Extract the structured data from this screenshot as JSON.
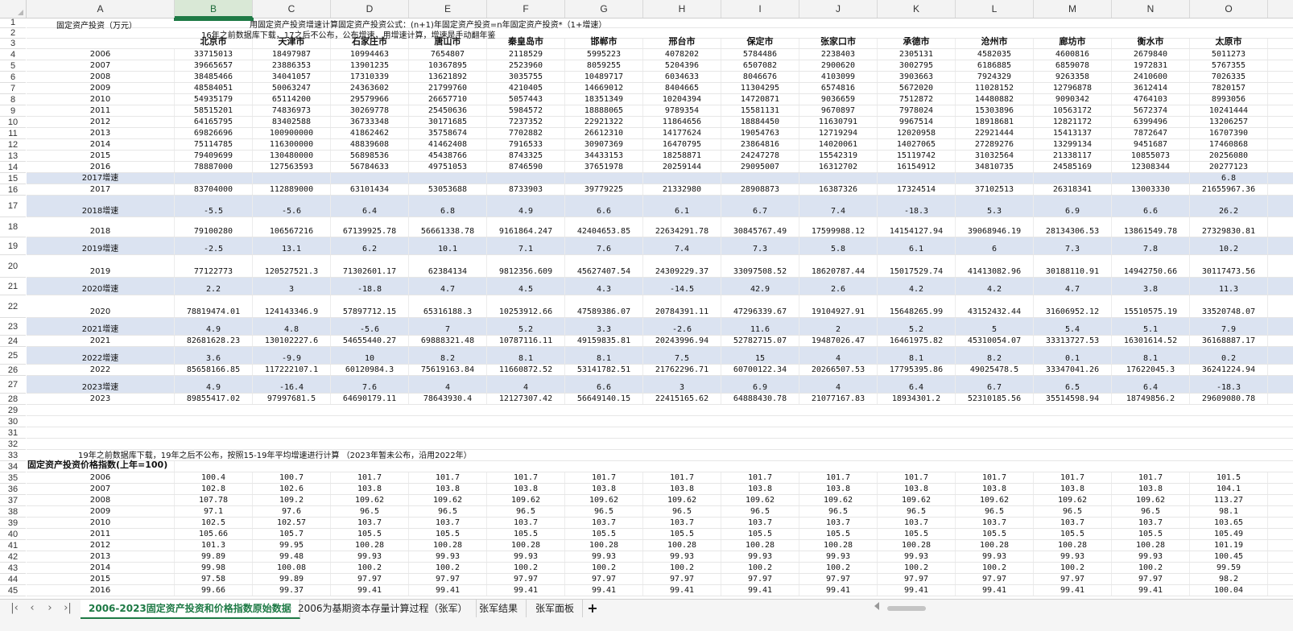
{
  "columns": [
    "A",
    "B",
    "C",
    "D",
    "E",
    "F",
    "G",
    "H",
    "I",
    "J",
    "K",
    "L",
    "M",
    "N",
    "O"
  ],
  "selected_column": "B",
  "row_numbers": [
    "1",
    "2",
    "3",
    "4",
    "5",
    "6",
    "7",
    "8",
    "9",
    "10",
    "11",
    "12",
    "13",
    "14",
    "15",
    "16",
    "17",
    "18",
    "19",
    "20",
    "21",
    "22",
    "23",
    "24",
    "25",
    "26",
    "27",
    "28",
    "29",
    "30",
    "31",
    "32",
    "33",
    "34",
    "35",
    "36",
    "37",
    "38",
    "39",
    "40",
    "41",
    "42",
    "43",
    "44",
    "45"
  ],
  "top_texts": {
    "a1": "固定资产投资（万元）",
    "b1": "用固定资产投资增速计算固定资产投资公式：(n+1)年固定资产投资=n年固定资产投资*（1+增速）",
    "b2": "16年之前数据库下载，17之后不公布，公布增速，用增速计算，增速是手动翻年鉴"
  },
  "cities": [
    "北京市",
    "天津市",
    "石家庄市",
    "唐山市",
    "秦皇岛市",
    "邯郸市",
    "邢台市",
    "保定市",
    "张家口市",
    "承德市",
    "沧州市",
    "廊坊市",
    "衡水市",
    "太原市"
  ],
  "invest_rows": [
    {
      "a": "2006",
      "v": [
        "33715013",
        "18497987",
        "10994463",
        "7654807",
        "2118529",
        "5995223",
        "4078202",
        "5784486",
        "2238403",
        "2305131",
        "4582035",
        "4600816",
        "2679840",
        "5011273"
      ]
    },
    {
      "a": "2007",
      "v": [
        "39665657",
        "23886353",
        "13901235",
        "10367895",
        "2523960",
        "8059255",
        "5204396",
        "6507082",
        "2900620",
        "3002795",
        "6186885",
        "6859078",
        "1972831",
        "5767355"
      ]
    },
    {
      "a": "2008",
      "v": [
        "38485466",
        "34041057",
        "17310339",
        "13621892",
        "3035755",
        "10489717",
        "6034633",
        "8046676",
        "4103099",
        "3903663",
        "7924329",
        "9263358",
        "2410600",
        "7026335"
      ]
    },
    {
      "a": "2009",
      "v": [
        "48584051",
        "50063247",
        "24363602",
        "21799760",
        "4210405",
        "14669012",
        "8404665",
        "11304295",
        "6574816",
        "5672020",
        "11028152",
        "12796878",
        "3612414",
        "7820157"
      ]
    },
    {
      "a": "2010",
      "v": [
        "54935179",
        "65114200",
        "29579966",
        "26657710",
        "5057443",
        "18351349",
        "10204394",
        "14720871",
        "9036659",
        "7512872",
        "14480882",
        "9090342",
        "4764103",
        "8993056"
      ]
    },
    {
      "a": "2011",
      "v": [
        "58515201",
        "74836973",
        "30269778",
        "25450636",
        "5984572",
        "18888065",
        "9789354",
        "15581131",
        "9670897",
        "7978024",
        "15303896",
        "10563172",
        "5672374",
        "10241444"
      ]
    },
    {
      "a": "2012",
      "v": [
        "64165795",
        "83402588",
        "36733348",
        "30171685",
        "7237352",
        "22921322",
        "11864656",
        "18884450",
        "11630791",
        "9967514",
        "18918681",
        "12821172",
        "6399496",
        "13206257"
      ]
    },
    {
      "a": "2013",
      "v": [
        "69826696",
        "100900000",
        "41862462",
        "35758674",
        "7702882",
        "26612310",
        "14177624",
        "19054763",
        "12719294",
        "12020958",
        "22921444",
        "15413137",
        "7872647",
        "16707390"
      ]
    },
    {
      "a": "2014",
      "v": [
        "75114785",
        "116300000",
        "48839608",
        "41462408",
        "7916533",
        "30907369",
        "16470795",
        "23864816",
        "14020061",
        "14027065",
        "27289276",
        "13299134",
        "9451687",
        "17460868"
      ]
    },
    {
      "a": "2015",
      "v": [
        "79409699",
        "130480000",
        "56898536",
        "45438766",
        "8743325",
        "34433153",
        "18258871",
        "24247278",
        "15542319",
        "15119742",
        "31032564",
        "21338117",
        "10855073",
        "20256080"
      ]
    },
    {
      "a": "2016",
      "v": [
        "78887000",
        "127563593",
        "56784633",
        "49751053",
        "8746590",
        "37651978",
        "20259144",
        "29095007",
        "16312702",
        "16154912",
        "34810735",
        "24585169",
        "12308344",
        "20277123"
      ]
    }
  ],
  "growth_2017": {
    "a": "2017增速",
    "v": [
      "",
      "",
      "",
      "",
      "",
      "",
      "",
      "",
      "",
      "",
      "",
      "",
      "",
      "6.8"
    ]
  },
  "year_2017": {
    "a": "2017",
    "v": [
      "83704000",
      "112889000",
      "63101434",
      "53053688",
      "8733903",
      "39779225",
      "21332980",
      "28908873",
      "16387326",
      "17324514",
      "37102513",
      "26318341",
      "13003330",
      "21655967.36"
    ]
  },
  "growth_pairs": [
    {
      "ga": "2018增速",
      "g": [
        "-5.5",
        "-5.6",
        "6.4",
        "6.8",
        "4.9",
        "6.6",
        "6.1",
        "6.7",
        "7.4",
        "-18.3",
        "5.3",
        "6.9",
        "6.6",
        "26.2"
      ],
      "ya": "2018",
      "y": [
        "79100280",
        "106567216",
        "67139925.78",
        "56661338.78",
        "9161864.247",
        "42404653.85",
        "22634291.78",
        "30845767.49",
        "17599988.12",
        "14154127.94",
        "39068946.19",
        "28134306.53",
        "13861549.78",
        "27329830.81"
      ]
    },
    {
      "ga": "2019增速",
      "g": [
        "-2.5",
        "13.1",
        "6.2",
        "10.1",
        "7.1",
        "7.6",
        "7.4",
        "7.3",
        "5.8",
        "6.1",
        "6",
        "7.3",
        "7.8",
        "10.2"
      ],
      "ya": "2019",
      "y": [
        "77122773",
        "120527521.3",
        "71302601.17",
        "62384134",
        "9812356.609",
        "45627407.54",
        "24309229.37",
        "33097508.52",
        "18620787.44",
        "15017529.74",
        "41413082.96",
        "30188110.91",
        "14942750.66",
        "30117473.56"
      ]
    },
    {
      "ga": "2020增速",
      "g": [
        "2.2",
        "3",
        "-18.8",
        "4.7",
        "4.5",
        "4.3",
        "-14.5",
        "42.9",
        "2.6",
        "4.2",
        "4.2",
        "4.7",
        "3.8",
        "11.3"
      ],
      "ya": "2020",
      "y": [
        "78819474.01",
        "124143346.9",
        "57897712.15",
        "65316188.3",
        "10253912.66",
        "47589386.07",
        "20784391.11",
        "47296339.67",
        "19104927.91",
        "15648265.99",
        "43152432.44",
        "31606952.12",
        "15510575.19",
        "33520748.07"
      ]
    },
    {
      "ga": "2021增速",
      "g": [
        "4.9",
        "4.8",
        "-5.6",
        "7",
        "5.2",
        "3.3",
        "-2.6",
        "11.6",
        "2",
        "5.2",
        "5",
        "5.4",
        "5.1",
        "7.9"
      ],
      "ya": "2021",
      "y": [
        "82681628.23",
        "130102227.6",
        "54655440.27",
        "69888321.48",
        "10787116.11",
        "49159835.81",
        "20243996.94",
        "52782715.07",
        "19487026.47",
        "16461975.82",
        "45310054.07",
        "33313727.53",
        "16301614.52",
        "36168887.17"
      ]
    },
    {
      "ga": "2022增速",
      "g": [
        "3.6",
        "-9.9",
        "10",
        "8.2",
        "8.1",
        "8.1",
        "7.5",
        "15",
        "4",
        "8.1",
        "8.2",
        "0.1",
        "8.1",
        "0.2"
      ],
      "ya": "2022",
      "y": [
        "85658166.85",
        "117222107.1",
        "60120984.3",
        "75619163.84",
        "11660872.52",
        "53141782.51",
        "21762296.71",
        "60700122.34",
        "20266507.53",
        "17795395.86",
        "49025478.5",
        "33347041.26",
        "17622045.3",
        "36241224.94"
      ]
    },
    {
      "ga": "2023增速",
      "g": [
        "4.9",
        "-16.4",
        "7.6",
        "4",
        "4",
        "6.6",
        "3",
        "6.9",
        "4",
        "6.4",
        "6.7",
        "6.5",
        "6.4",
        "-18.3"
      ],
      "ya": "2023",
      "y": [
        "89855417.02",
        "97997681.5",
        "64690179.11",
        "78643930.4",
        "12127307.42",
        "56649140.15",
        "22415165.62",
        "64888430.78",
        "21077167.83",
        "18934301.2",
        "52310185.56",
        "35514598.94",
        "18749856.2",
        "29609080.78"
      ]
    }
  ],
  "note_33": "19年之前数据库下载，19年之后不公布，按照15-19年平均增速进行计算 （2023年暂未公布，沿用2022年）",
  "price_index_title": "固定资产投资价格指数(上年=100)",
  "price_rows": [
    {
      "a": "2006",
      "v": [
        "100.4",
        "100.7",
        "101.7",
        "101.7",
        "101.7",
        "101.7",
        "101.7",
        "101.7",
        "101.7",
        "101.7",
        "101.7",
        "101.7",
        "101.7",
        "101.5"
      ]
    },
    {
      "a": "2007",
      "v": [
        "102.8",
        "102.6",
        "103.8",
        "103.8",
        "103.8",
        "103.8",
        "103.8",
        "103.8",
        "103.8",
        "103.8",
        "103.8",
        "103.8",
        "103.8",
        "104.1"
      ]
    },
    {
      "a": "2008",
      "v": [
        "107.78",
        "109.2",
        "109.62",
        "109.62",
        "109.62",
        "109.62",
        "109.62",
        "109.62",
        "109.62",
        "109.62",
        "109.62",
        "109.62",
        "109.62",
        "113.27"
      ]
    },
    {
      "a": "2009",
      "v": [
        "97.1",
        "97.6",
        "96.5",
        "96.5",
        "96.5",
        "96.5",
        "96.5",
        "96.5",
        "96.5",
        "96.5",
        "96.5",
        "96.5",
        "96.5",
        "98.1"
      ]
    },
    {
      "a": "2010",
      "v": [
        "102.5",
        "102.57",
        "103.7",
        "103.7",
        "103.7",
        "103.7",
        "103.7",
        "103.7",
        "103.7",
        "103.7",
        "103.7",
        "103.7",
        "103.7",
        "103.65"
      ]
    },
    {
      "a": "2011",
      "v": [
        "105.66",
        "105.7",
        "105.5",
        "105.5",
        "105.5",
        "105.5",
        "105.5",
        "105.5",
        "105.5",
        "105.5",
        "105.5",
        "105.5",
        "105.5",
        "105.49"
      ]
    },
    {
      "a": "2012",
      "v": [
        "101.3",
        "99.95",
        "100.28",
        "100.28",
        "100.28",
        "100.28",
        "100.28",
        "100.28",
        "100.28",
        "100.28",
        "100.28",
        "100.28",
        "100.28",
        "101.19"
      ]
    },
    {
      "a": "2013",
      "v": [
        "99.89",
        "99.48",
        "99.93",
        "99.93",
        "99.93",
        "99.93",
        "99.93",
        "99.93",
        "99.93",
        "99.93",
        "99.93",
        "99.93",
        "99.93",
        "100.45"
      ]
    },
    {
      "a": "2014",
      "v": [
        "99.98",
        "100.08",
        "100.2",
        "100.2",
        "100.2",
        "100.2",
        "100.2",
        "100.2",
        "100.2",
        "100.2",
        "100.2",
        "100.2",
        "100.2",
        "99.59"
      ]
    },
    {
      "a": "2015",
      "v": [
        "97.58",
        "99.89",
        "97.97",
        "97.97",
        "97.97",
        "97.97",
        "97.97",
        "97.97",
        "97.97",
        "97.97",
        "97.97",
        "97.97",
        "97.97",
        "98.2"
      ]
    },
    {
      "a": "2016",
      "v": [
        "99.66",
        "99.37",
        "99.41",
        "99.41",
        "99.41",
        "99.41",
        "99.41",
        "99.41",
        "99.41",
        "99.41",
        "99.41",
        "99.41",
        "99.41",
        "100.04"
      ]
    }
  ],
  "tabs": [
    "2006-2023固定资产投资和价格指数原始数据",
    "2006为基期资本存量计算过程（张军）",
    "张军结果",
    "张军面板"
  ],
  "active_tab": 0,
  "nav_icons": [
    "first-sheet-icon",
    "prev-sheet-icon",
    "next-sheet-icon",
    "last-sheet-icon"
  ],
  "nav_glyphs": [
    "|‹",
    "‹",
    "›",
    "›|"
  ],
  "add_tab": "+"
}
